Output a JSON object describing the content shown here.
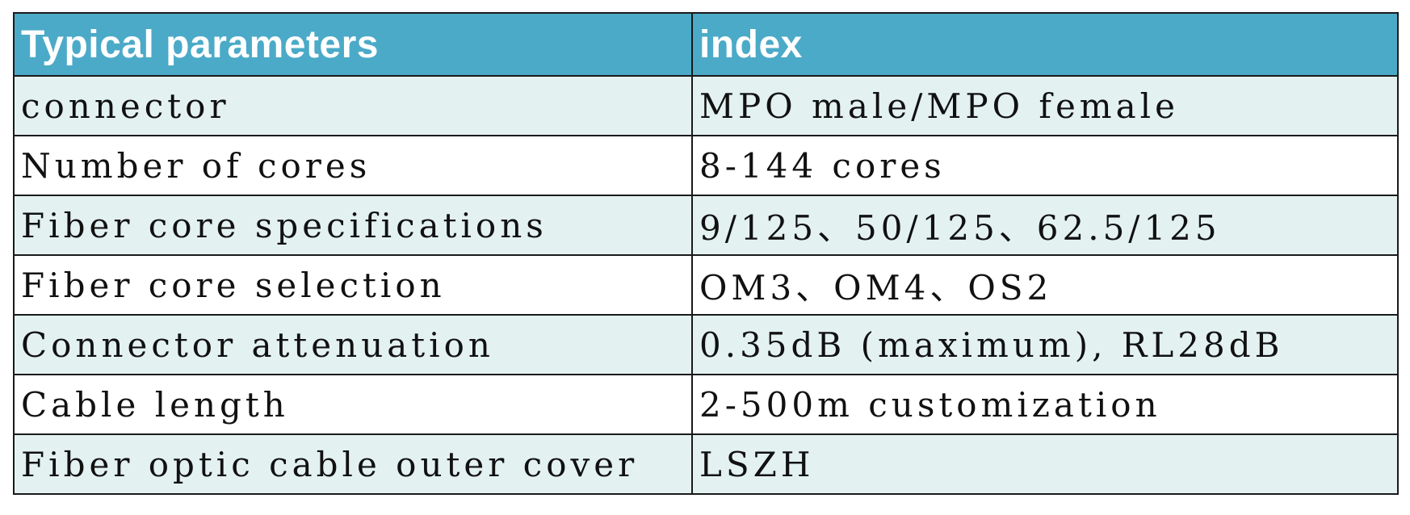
{
  "colors": {
    "header_bg": "#4baac8",
    "header_text": "#ffffff",
    "row_shade": "#e3f1f1",
    "row_plain": "#ffffff",
    "border": "#1a1a1a"
  },
  "table": {
    "headers": [
      "Typical parameters",
      "index"
    ],
    "rows": [
      {
        "parameter": "connector",
        "value": "MPO male/MPO female"
      },
      {
        "parameter": "Number of cores",
        "value": "8-144 cores"
      },
      {
        "parameter": "Fiber core specifications",
        "value": "9/125、50/125、62.5/125"
      },
      {
        "parameter": "Fiber core selection",
        "value": "OM3、OM4、OS2"
      },
      {
        "parameter": "Connector attenuation",
        "value": "0.35dB (maximum), RL28dB"
      },
      {
        "parameter": "Cable length",
        "value": "2-500m customization"
      },
      {
        "parameter": "Fiber optic cable outer cover",
        "value": "LSZH"
      }
    ]
  }
}
